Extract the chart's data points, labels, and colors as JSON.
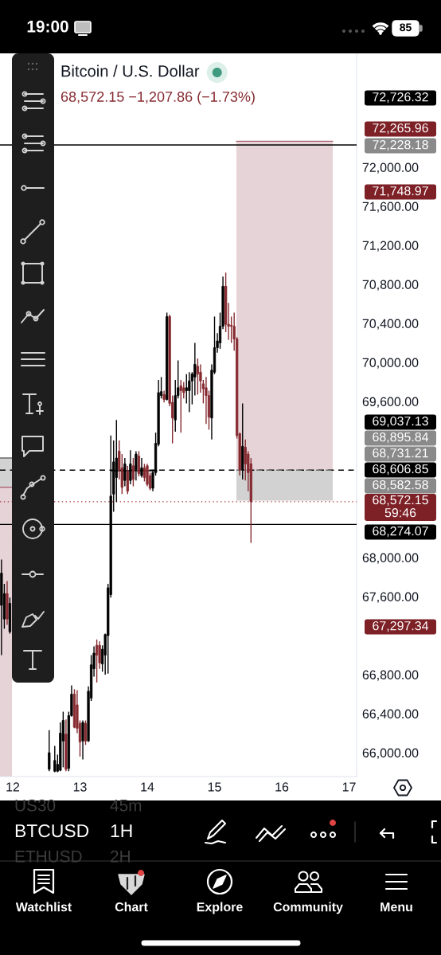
{
  "chart_data": {
    "type": "candlestick",
    "title": "Bitcoin / U.S. Dollar",
    "subtitle": "68,572.15 −1,207.86 (−1.73%)",
    "x": [
      11.833,
      11.875,
      11.917,
      11.958,
      12.542,
      12.625,
      12.667,
      12.708,
      12.75,
      12.792,
      12.833,
      12.875,
      12.917,
      12.958,
      13.0,
      13.042,
      13.083,
      13.125,
      13.167,
      13.208,
      13.25,
      13.292,
      13.333,
      13.375,
      13.417,
      13.458,
      13.5,
      13.542,
      13.583,
      13.625,
      13.667,
      13.708,
      13.75,
      13.792,
      13.833,
      13.875,
      13.917,
      13.958,
      14.0,
      14.042,
      14.083,
      14.125,
      14.167,
      14.208,
      14.25,
      14.292,
      14.333,
      14.375,
      14.417,
      14.458,
      14.5,
      14.542,
      14.583,
      14.625,
      14.667,
      14.708,
      14.75,
      14.792,
      14.833,
      14.875,
      14.917,
      14.958,
      15.0,
      15.042,
      15.083,
      15.125,
      15.167,
      15.208,
      15.25,
      15.292,
      15.333,
      15.375,
      15.417,
      15.458,
      15.5,
      15.542
    ],
    "ohlc": [
      [
        67510,
        67980,
        67000,
        67840
      ],
      [
        67370,
        67730,
        67270,
        67630
      ],
      [
        67630,
        67760,
        67310,
        67370
      ],
      [
        67240,
        67590,
        67220,
        67530
      ],
      [
        65830,
        66230,
        65810,
        66000
      ],
      [
        65810,
        66070,
        65800,
        65920
      ],
      [
        65810,
        65980,
        65800,
        65880
      ],
      [
        65820,
        66310,
        65810,
        66200
      ],
      [
        66120,
        66420,
        65850,
        66330
      ],
      [
        66190,
        66340,
        65810,
        65830
      ],
      [
        65840,
        66420,
        65810,
        66380
      ],
      [
        66380,
        66690,
        66370,
        66600
      ],
      [
        66600,
        66650,
        66250,
        66260
      ],
      [
        66490,
        66640,
        66200,
        66250
      ],
      [
        66300,
        66330,
        65960,
        66110
      ],
      [
        66120,
        66330,
        65930,
        66310
      ],
      [
        66300,
        66330,
        66080,
        66120
      ],
      [
        66120,
        66680,
        66110,
        66630
      ],
      [
        66560,
        67000,
        66530,
        66900
      ],
      [
        66860,
        67090,
        66780,
        67020
      ],
      [
        67100,
        67160,
        66720,
        67000
      ],
      [
        67100,
        67140,
        66860,
        66920
      ],
      [
        66910,
        67100,
        66830,
        67060
      ],
      [
        67000,
        67220,
        66800,
        67210
      ],
      [
        67200,
        67730,
        66810,
        67690
      ],
      [
        67620,
        69250,
        67590,
        68630
      ],
      [
        68650,
        69200,
        68470,
        68980
      ],
      [
        68820,
        69410,
        68570,
        69020
      ],
      [
        69090,
        69200,
        68800,
        68900
      ],
      [
        68920,
        69060,
        68650,
        68720
      ],
      [
        68790,
        69020,
        68730,
        68960
      ],
      [
        68880,
        68940,
        68650,
        68680
      ],
      [
        68790,
        69100,
        68750,
        68960
      ],
      [
        68940,
        69020,
        68730,
        68800
      ],
      [
        68900,
        69090,
        68790,
        69060
      ],
      [
        69040,
        69090,
        68830,
        68860
      ],
      [
        68840,
        69020,
        68820,
        68920
      ],
      [
        68920,
        68960,
        68780,
        68820
      ],
      [
        68940,
        68960,
        68730,
        68750
      ],
      [
        68840,
        68870,
        68690,
        68710
      ],
      [
        68710,
        68900,
        68680,
        68870
      ],
      [
        68870,
        69280,
        68840,
        69170
      ],
      [
        69160,
        69820,
        69140,
        69690
      ],
      [
        69660,
        69850,
        69630,
        69700
      ],
      [
        69670,
        69710,
        69590,
        69620
      ],
      [
        69620,
        70510,
        69610,
        70470
      ],
      [
        70470,
        70490,
        69550,
        69580
      ],
      [
        69590,
        69660,
        69170,
        69430
      ],
      [
        69410,
        69820,
        69290,
        69660
      ],
      [
        69660,
        70020,
        69630,
        69740
      ],
      [
        69760,
        69820,
        69280,
        69710
      ],
      [
        69740,
        69800,
        69630,
        69690
      ],
      [
        69710,
        69880,
        69580,
        69740
      ],
      [
        69710,
        69900,
        69490,
        69810
      ],
      [
        69810,
        69900,
        69570,
        69880
      ],
      [
        69850,
        70200,
        69660,
        69980
      ],
      [
        69960,
        70040,
        69670,
        69880
      ],
      [
        69900,
        69980,
        69690,
        69810
      ],
      [
        69780,
        69820,
        69580,
        69730
      ],
      [
        69740,
        69850,
        69370,
        69660
      ],
      [
        69660,
        69710,
        69310,
        69440
      ],
      [
        69430,
        69980,
        69210,
        69920
      ],
      [
        69900,
        70470,
        69880,
        70150
      ],
      [
        70150,
        70300,
        70100,
        70220
      ],
      [
        70200,
        70510,
        70140,
        70370
      ],
      [
        70370,
        70880,
        70340,
        70780
      ],
      [
        70780,
        70920,
        70310,
        70390
      ],
      [
        70390,
        70610,
        70230,
        70370
      ],
      [
        70380,
        70470,
        70200,
        70370
      ],
      [
        70370,
        70510,
        70120,
        70240
      ],
      [
        70240,
        70260,
        69220,
        69250
      ],
      [
        69270,
        69280,
        68840,
        68900
      ],
      [
        68900,
        69580,
        68800,
        69140
      ],
      [
        69130,
        69210,
        68790,
        68960
      ],
      [
        69060,
        69090,
        68680,
        68870
      ],
      [
        68960,
        69020,
        68150,
        68572.15
      ]
    ],
    "colors": [
      "#000000",
      "#000000",
      "#862a30",
      "#000000",
      "#000000",
      "#000000",
      "#000000",
      "#000000",
      "#000000",
      "#862a30",
      "#000000",
      "#000000",
      "#862a30",
      "#862a30",
      "#862a30",
      "#000000",
      "#862a30",
      "#000000",
      "#000000",
      "#000000",
      "#862a30",
      "#862a30",
      "#000000",
      "#000000",
      "#000000",
      "#000000",
      "#000000",
      "#000000",
      "#862a30",
      "#862a30",
      "#000000",
      "#862a30",
      "#000000",
      "#862a30",
      "#000000",
      "#862a30",
      "#000000",
      "#862a30",
      "#862a30",
      "#862a30",
      "#000000",
      "#000000",
      "#000000",
      "#000000",
      "#862a30",
      "#000000",
      "#862a30",
      "#862a30",
      "#000000",
      "#000000",
      "#862a30",
      "#862a30",
      "#000000",
      "#000000",
      "#000000",
      "#000000",
      "#862a30",
      "#862a30",
      "#862a30",
      "#862a30",
      "#862a30",
      "#000000",
      "#000000",
      "#000000",
      "#000000",
      "#000000",
      "#862a30",
      "#862a30",
      "#862a30",
      "#862a30",
      "#862a30",
      "#862a30",
      "#000000",
      "#862a30",
      "#862a30",
      "#862a30"
    ],
    "series": [
      {
        "type": "line",
        "x": [
          15.325,
          16.757
        ],
        "values": [
          72265.96,
          72265.96
        ],
        "lower": [
          68895.84,
          68895.84
        ],
        "upper": [
          72265.96,
          72265.96
        ],
        "color": "#ac6c7a"
      },
      {
        "type": "line",
        "x": [
          15.325,
          16.757
        ],
        "values": [
          68895.84,
          68895.84
        ],
        "lower": [
          68582.58,
          68582.58
        ],
        "upper": [
          68895.84,
          68895.84
        ],
        "color": "#696969",
        "line_style": "dashed"
      },
      {
        "type": "line",
        "x": [
          11.811,
          11.99
        ],
        "values": [
          69020,
          69020
        ],
        "lower": [
          68720,
          68720
        ],
        "upper": [
          69020,
          69020
        ],
        "color": "#696969"
      },
      {
        "type": "line",
        "x": [
          11.811,
          11.99
        ],
        "values": [
          68720,
          68720
        ],
        "lower": [
          65755,
          65755
        ],
        "upper": [
          68720,
          68720
        ],
        "color": "#ac6c7a"
      },
      {
        "type": "line",
        "x": [
          13.467,
          14.142
        ],
        "values": [
          68890,
          68890
        ],
        "color": "#000000"
      }
    ],
    "xlim": [
      11.811,
      17.112
    ],
    "ylim": [
      65755,
      73167
    ],
    "xticks": [
      12,
      13,
      14,
      15,
      16,
      17
    ],
    "yticks": [
      {
        "value": 72000,
        "label": "72,000.00"
      },
      {
        "value": 71600,
        "label": "71,600.00"
      },
      {
        "value": 71200,
        "label": "71,200.00"
      },
      {
        "value": 70800,
        "label": "70,800.00"
      },
      {
        "value": 70400,
        "label": "70,400.00"
      },
      {
        "value": 70000,
        "label": "70,000.00"
      },
      {
        "value": 69600,
        "label": "69,600.00"
      },
      {
        "value": 68000,
        "label": "68,000.00"
      },
      {
        "value": 67600,
        "label": "67,600.00"
      },
      {
        "value": 66800,
        "label": "66,800.00"
      },
      {
        "value": 66400,
        "label": "66,400.00"
      },
      {
        "value": 66000,
        "label": "66,000.00"
      }
    ],
    "ref_lines": [
      {
        "axis": "y",
        "value": 72228.18,
        "color": "#000000",
        "line_style": "solid"
      },
      {
        "axis": "y",
        "value": 68895.84,
        "color": "#000000",
        "line_style": "dashed"
      },
      {
        "axis": "y",
        "value": 68572.15,
        "color": "#a8323c",
        "line_style": "dotted"
      },
      {
        "axis": "y",
        "value": 68340,
        "color": "#000000",
        "line_style": "solid"
      }
    ],
    "annotations": [
      "19:00",
      "85",
      "US30",
      "45m",
      "BTCUSD",
      "1H",
      "ETHUSD",
      "2H",
      "Watchlist",
      "Chart",
      "Explore",
      "Community",
      "Menu",
      "72,726.32",
      "72,265.96",
      "72,228.18",
      "71,748.97",
      "69,037.13",
      "68,895.84",
      "68,731.21",
      "68,606.85",
      "68,582.58",
      "68,572.15\n59:46",
      "68,274.07",
      "67,297.34"
    ]
  }
}
